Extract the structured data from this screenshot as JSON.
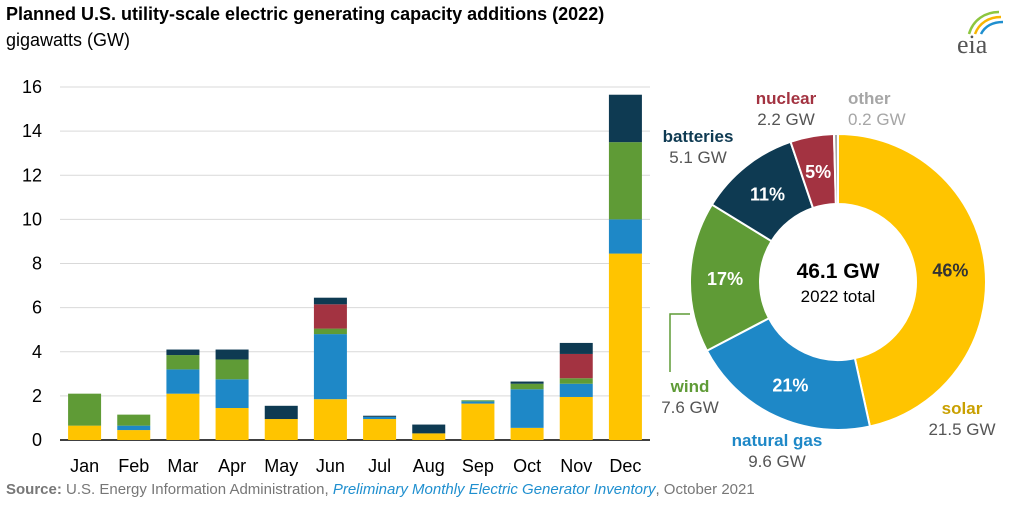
{
  "title": "Planned U.S. utility-scale electric generating capacity additions (2022)",
  "subtitle": "gigawatts (GW)",
  "logo_text": "eia",
  "colors": {
    "solar": "#ffc400",
    "natural_gas": "#1e88c7",
    "wind": "#5f9b36",
    "nuclear": "#a33341",
    "batteries": "#0e3a52",
    "other": "#a6a6a6",
    "wind_label": "#5f9b36",
    "solar_label": "#c9a000"
  },
  "source": {
    "label": "Source:",
    "text1": "U.S. Energy Information Administration,",
    "link": "Preliminary Monthly Electric Generator Inventory",
    "text2": ", October 2021"
  },
  "chart_data": [
    {
      "type": "bar",
      "stacked": true,
      "categories": [
        "Jan",
        "Feb",
        "Mar",
        "Apr",
        "May",
        "Jun",
        "Jul",
        "Aug",
        "Sep",
        "Oct",
        "Nov",
        "Dec"
      ],
      "series": [
        {
          "name": "solar",
          "values": [
            0.65,
            0.45,
            2.1,
            1.45,
            0.95,
            1.85,
            0.95,
            0.3,
            1.65,
            0.55,
            1.95,
            8.45
          ]
        },
        {
          "name": "natural gas",
          "values": [
            0.0,
            0.2,
            1.1,
            1.3,
            0.0,
            2.95,
            0.1,
            0.0,
            0.1,
            1.75,
            0.6,
            1.55
          ]
        },
        {
          "name": "wind",
          "values": [
            1.45,
            0.5,
            0.65,
            0.9,
            0.0,
            0.25,
            0.0,
            0.0,
            0.05,
            0.25,
            0.25,
            3.5
          ]
        },
        {
          "name": "nuclear",
          "values": [
            0,
            0,
            0,
            0,
            0,
            1.1,
            0,
            0,
            0,
            0,
            1.1,
            0
          ]
        },
        {
          "name": "batteries",
          "values": [
            0.0,
            0.0,
            0.25,
            0.45,
            0.6,
            0.3,
            0.05,
            0.4,
            0.0,
            0.1,
            0.5,
            2.15
          ]
        },
        {
          "name": "other",
          "values": [
            0,
            0,
            0,
            0,
            0,
            0,
            0,
            0,
            0,
            0,
            0,
            0
          ]
        }
      ],
      "ylim": [
        0,
        16
      ],
      "yticks": [
        0,
        2,
        4,
        6,
        8,
        10,
        12,
        14,
        16
      ],
      "ylabel": "gigawatts (GW)",
      "grid": true
    },
    {
      "type": "pie",
      "donut": true,
      "center_value": "46.1 GW",
      "center_label": "2022 total",
      "slices": [
        {
          "name": "solar",
          "value": 21.5,
          "value_label": "21.5 GW",
          "percent_label": "46%"
        },
        {
          "name": "natural gas",
          "value": 9.6,
          "value_label": "9.6 GW",
          "percent_label": "21%"
        },
        {
          "name": "wind",
          "value": 7.6,
          "value_label": "7.6 GW",
          "percent_label": "17%"
        },
        {
          "name": "batteries",
          "value": 5.1,
          "value_label": "5.1 GW",
          "percent_label": "11%"
        },
        {
          "name": "nuclear",
          "value": 2.2,
          "value_label": "2.2 GW",
          "percent_label": "5%"
        },
        {
          "name": "other",
          "value": 0.2,
          "value_label": "0.2 GW",
          "percent_label": ""
        }
      ]
    }
  ]
}
